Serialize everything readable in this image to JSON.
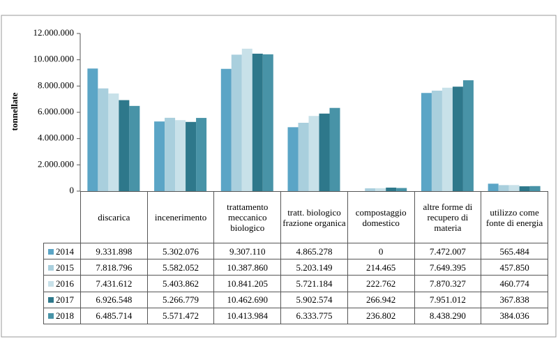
{
  "chart_data": {
    "type": "bar",
    "y_label": "tonnellate",
    "categories": [
      "discarica",
      "incenerimento",
      "trattamento meccanico biologico",
      "tratt. biologico frazione organica",
      "compostaggio domestico",
      "altre forme di recupero di materia",
      "utilizzo come fonte di energia"
    ],
    "series": [
      {
        "name": "2014",
        "color": "#5ba5c6",
        "values": [
          9331898,
          5302076,
          9307110,
          4865278,
          0,
          7472007,
          565484
        ],
        "value_labels": [
          "9.331.898",
          "5.302.076",
          "9.307.110",
          "4.865.278",
          "0",
          "7.472.007",
          "565.484"
        ]
      },
      {
        "name": "2015",
        "color": "#a9cfdd",
        "values": [
          7818796,
          5582052,
          10387860,
          5203149,
          214465,
          7649395,
          457850
        ],
        "value_labels": [
          "7.818.796",
          "5.582.052",
          "10.387.860",
          "5.203.149",
          "214.465",
          "7.649.395",
          "457.850"
        ]
      },
      {
        "name": "2016",
        "color": "#c8e1e9",
        "values": [
          7431612,
          5403862,
          10841205,
          5721184,
          222762,
          7870327,
          460774
        ],
        "value_labels": [
          "7.431.612",
          "5.403.862",
          "10.841.205",
          "5.721.184",
          "222.762",
          "7.870.327",
          "460.774"
        ]
      },
      {
        "name": "2017",
        "color": "#2e788b",
        "values": [
          6926548,
          5266779,
          10462690,
          5902574,
          266942,
          7951012,
          367838
        ],
        "value_labels": [
          "6.926.548",
          "5.266.779",
          "10.462.690",
          "5.902.574",
          "266.942",
          "7.951.012",
          "367.838"
        ]
      },
      {
        "name": "2018",
        "color": "#4893a7",
        "values": [
          6485714,
          5571472,
          10413984,
          6333775,
          236802,
          8438290,
          384036
        ],
        "value_labels": [
          "6.485.714",
          "5.571.472",
          "10.413.984",
          "6.333.775",
          "236.802",
          "8.438.290",
          "384.036"
        ]
      }
    ],
    "ylim": [
      0,
      12000000
    ],
    "yticks": [
      {
        "value": 0,
        "label": "0"
      },
      {
        "value": 2000000,
        "label": "2.000.000"
      },
      {
        "value": 4000000,
        "label": "4.000.000"
      },
      {
        "value": 6000000,
        "label": "6.000.000"
      },
      {
        "value": 8000000,
        "label": "8.000.000"
      },
      {
        "value": 10000000,
        "label": "10.000.000"
      },
      {
        "value": 12000000,
        "label": "12.000.000"
      }
    ]
  }
}
